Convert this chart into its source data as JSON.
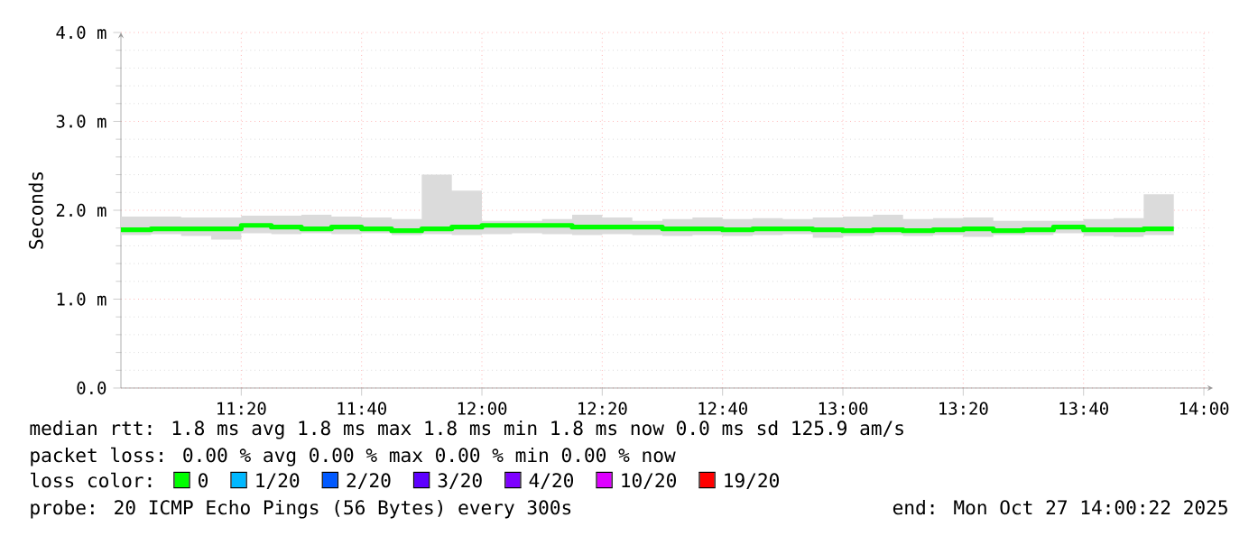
{
  "chart_data": {
    "type": "step",
    "ylabel": "Seconds",
    "x": [
      11.0,
      11.0833,
      11.1667,
      11.25,
      11.3333,
      11.4167,
      11.5,
      11.5833,
      11.6667,
      11.75,
      11.8333,
      11.9167,
      12.0,
      12.0833,
      12.1667,
      12.25,
      12.3333,
      12.4167,
      12.5,
      12.5833,
      12.6667,
      12.75,
      12.8333,
      12.9167,
      13.0,
      13.0833,
      13.1667,
      13.25,
      13.3333,
      13.4167,
      13.5,
      13.5833,
      13.6667,
      13.75,
      13.8333,
      13.9167
    ],
    "xlim": [
      11.0,
      14.025
    ],
    "xticks": [
      {
        "value": 11.3333,
        "label": "11:20"
      },
      {
        "value": 11.6667,
        "label": "11:40"
      },
      {
        "value": 12.0,
        "label": "12:00"
      },
      {
        "value": 12.3333,
        "label": "12:20"
      },
      {
        "value": 12.6667,
        "label": "12:40"
      },
      {
        "value": 13.0,
        "label": "13:00"
      },
      {
        "value": 13.3333,
        "label": "13:20"
      },
      {
        "value": 13.6667,
        "label": "13:40"
      },
      {
        "value": 14.0,
        "label": "14:00"
      }
    ],
    "ylim": [
      0,
      4
    ],
    "yticks": [
      {
        "value": 0,
        "label": "0.0"
      },
      {
        "value": 1,
        "label": "1.0 m"
      },
      {
        "value": 2,
        "label": "2.0 m"
      },
      {
        "value": 3,
        "label": "3.0 m"
      },
      {
        "value": 4,
        "label": "4.0 m"
      }
    ],
    "grid": true,
    "legend": "bottom",
    "legend_title": "loss color:",
    "series": [
      {
        "name": "0",
        "color": "#00ff00",
        "values": [
          1.78,
          1.79,
          1.79,
          1.79,
          1.83,
          1.81,
          1.79,
          1.81,
          1.79,
          1.77,
          1.79,
          1.81,
          1.83,
          1.83,
          1.83,
          1.81,
          1.81,
          1.81,
          1.79,
          1.79,
          1.78,
          1.79,
          1.79,
          1.78,
          1.77,
          1.78,
          1.77,
          1.78,
          1.79,
          1.77,
          1.78,
          1.81,
          1.78,
          1.78,
          1.79,
          1.79
        ],
        "lower": [
          1.72,
          1.73,
          1.71,
          1.67,
          1.74,
          1.73,
          1.74,
          1.73,
          1.74,
          1.72,
          1.73,
          1.72,
          1.73,
          1.74,
          1.73,
          1.72,
          1.73,
          1.72,
          1.71,
          1.72,
          1.71,
          1.72,
          1.73,
          1.69,
          1.71,
          1.72,
          1.71,
          1.72,
          1.7,
          1.72,
          1.72,
          1.74,
          1.71,
          1.7,
          1.72,
          1.72
        ],
        "upper": [
          1.93,
          1.93,
          1.92,
          1.92,
          1.94,
          1.94,
          1.95,
          1.93,
          1.92,
          1.9,
          2.4,
          2.22,
          1.88,
          1.88,
          1.9,
          1.95,
          1.92,
          1.88,
          1.9,
          1.92,
          1.9,
          1.91,
          1.9,
          1.92,
          1.93,
          1.95,
          1.9,
          1.91,
          1.92,
          1.88,
          1.88,
          1.88,
          1.9,
          1.91,
          2.18,
          2.18
        ]
      },
      {
        "name": "1/20",
        "color": "#00b8ff",
        "values": [
          null,
          null,
          null,
          null,
          null,
          null,
          null,
          null,
          null,
          null,
          null,
          null,
          null,
          null,
          null,
          null,
          null,
          null,
          null,
          null,
          null,
          null,
          null,
          null,
          null,
          null,
          null,
          null,
          null,
          null,
          null,
          null,
          null,
          null,
          null,
          null
        ]
      },
      {
        "name": "2/20",
        "color": "#0059ff",
        "values": [
          null,
          null,
          null,
          null,
          null,
          null,
          null,
          null,
          null,
          null,
          null,
          null,
          null,
          null,
          null,
          null,
          null,
          null,
          null,
          null,
          null,
          null,
          null,
          null,
          null,
          null,
          null,
          null,
          null,
          null,
          null,
          null,
          null,
          null,
          null,
          null
        ]
      },
      {
        "name": "3/20",
        "color": "#5e00ff",
        "values": [
          null,
          null,
          null,
          null,
          null,
          null,
          null,
          null,
          null,
          null,
          null,
          null,
          null,
          null,
          null,
          null,
          null,
          null,
          null,
          null,
          null,
          null,
          null,
          null,
          null,
          null,
          null,
          null,
          null,
          null,
          null,
          null,
          null,
          null,
          null,
          null
        ]
      },
      {
        "name": "4/20",
        "color": "#7e00ff",
        "values": [
          null,
          null,
          null,
          null,
          null,
          null,
          null,
          null,
          null,
          null,
          null,
          null,
          null,
          null,
          null,
          null,
          null,
          null,
          null,
          null,
          null,
          null,
          null,
          null,
          null,
          null,
          null,
          null,
          null,
          null,
          null,
          null,
          null,
          null,
          null,
          null
        ]
      },
      {
        "name": "10/20",
        "color": "#dd00ff",
        "values": [
          null,
          null,
          null,
          null,
          null,
          null,
          null,
          null,
          null,
          null,
          null,
          null,
          null,
          null,
          null,
          null,
          null,
          null,
          null,
          null,
          null,
          null,
          null,
          null,
          null,
          null,
          null,
          null,
          null,
          null,
          null,
          null,
          null,
          null,
          null,
          null
        ]
      },
      {
        "name": "19/20",
        "color": "#ff0000",
        "values": [
          null,
          null,
          null,
          null,
          null,
          null,
          null,
          null,
          null,
          null,
          null,
          null,
          null,
          null,
          null,
          null,
          null,
          null,
          null,
          null,
          null,
          null,
          null,
          null,
          null,
          null,
          null,
          null,
          null,
          null,
          null,
          null,
          null,
          null,
          null,
          null
        ]
      }
    ],
    "annotations": [
      "median rtt:  1.8 ms avg  1.8 ms max  1.8 ms min  1.8 ms now  0.0 ms sd  125.9   am/s",
      "packet loss: 0.00 % avg  0.00 % max  0.00 % min  0.00 % now",
      "probe:       20 ICMP Echo Pings (56 Bytes) every 300s",
      "end: Mon Oct 27 14:00:22 2025"
    ]
  }
}
